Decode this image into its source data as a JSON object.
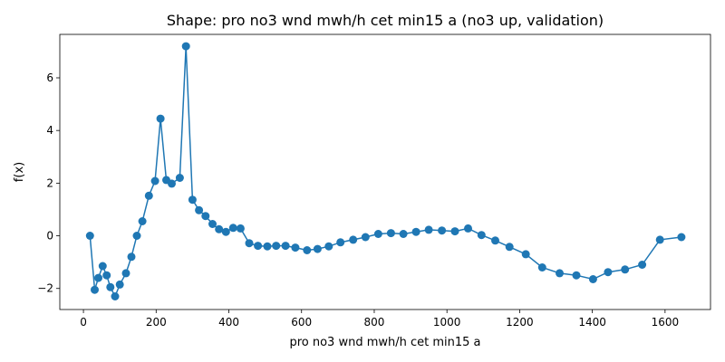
{
  "chart_data": {
    "type": "line",
    "title": "Shape: pro no3 wnd mwh/h cet min15 a (no3 up, validation)",
    "xlabel": "pro no3 wnd mwh/h cet min15 a",
    "ylabel": "f(x)",
    "xlim": [
      -65,
      1725
    ],
    "ylim": [
      -2.8,
      7.65
    ],
    "xticks": [
      0,
      200,
      400,
      600,
      800,
      1000,
      1200,
      1400,
      1600
    ],
    "yticks": [
      -2,
      0,
      2,
      4,
      6
    ],
    "grid": false,
    "marker": "circle",
    "color": "#1f77b4",
    "series": [
      {
        "x": [
          18,
          31,
          41,
          53,
          64,
          74,
          87,
          100,
          117,
          132,
          147,
          162,
          180,
          197,
          212,
          228,
          243,
          265,
          282,
          300,
          318,
          336,
          355,
          373,
          392,
          412,
          432,
          456,
          480,
          506,
          530,
          556,
          583,
          615,
          644,
          675,
          707,
          742,
          776,
          811,
          846,
          880,
          915,
          950,
          986,
          1022,
          1058,
          1095,
          1133,
          1172,
          1217,
          1262,
          1310,
          1356,
          1402,
          1443,
          1490,
          1537,
          1586,
          1645
        ],
        "y": [
          0.0,
          -2.05,
          -1.6,
          -1.15,
          -1.5,
          -1.95,
          -2.3,
          -1.85,
          -1.42,
          -0.8,
          0.0,
          0.55,
          1.52,
          2.08,
          4.45,
          2.12,
          1.98,
          2.2,
          7.2,
          1.37,
          0.97,
          0.75,
          0.45,
          0.25,
          0.15,
          0.3,
          0.28,
          -0.28,
          -0.38,
          -0.4,
          -0.38,
          -0.38,
          -0.45,
          -0.55,
          -0.5,
          -0.4,
          -0.25,
          -0.15,
          -0.05,
          0.07,
          0.1,
          0.07,
          0.15,
          0.23,
          0.2,
          0.17,
          0.28,
          0.03,
          -0.18,
          -0.42,
          -0.7,
          -1.2,
          -1.42,
          -1.5,
          -1.65,
          -1.38,
          -1.28,
          -1.1,
          -0.15,
          -0.05
        ]
      }
    ]
  }
}
